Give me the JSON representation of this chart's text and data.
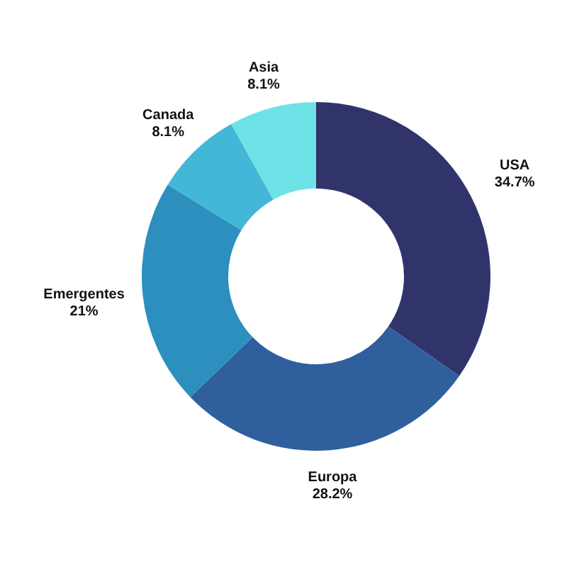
{
  "chart_data": {
    "type": "donut",
    "categories": [
      "USA",
      "Europa",
      "Emergentes",
      "Canada",
      "Asia"
    ],
    "values": [
      34.7,
      28.2,
      21,
      8.1,
      8.1
    ],
    "value_labels": [
      "34.7%",
      "28.2%",
      "21%",
      "8.1%",
      "8.1%"
    ],
    "colors": [
      "#31346b",
      "#2f5f9d",
      "#2c8fbe",
      "#43b7d7",
      "#6de3e8"
    ]
  }
}
